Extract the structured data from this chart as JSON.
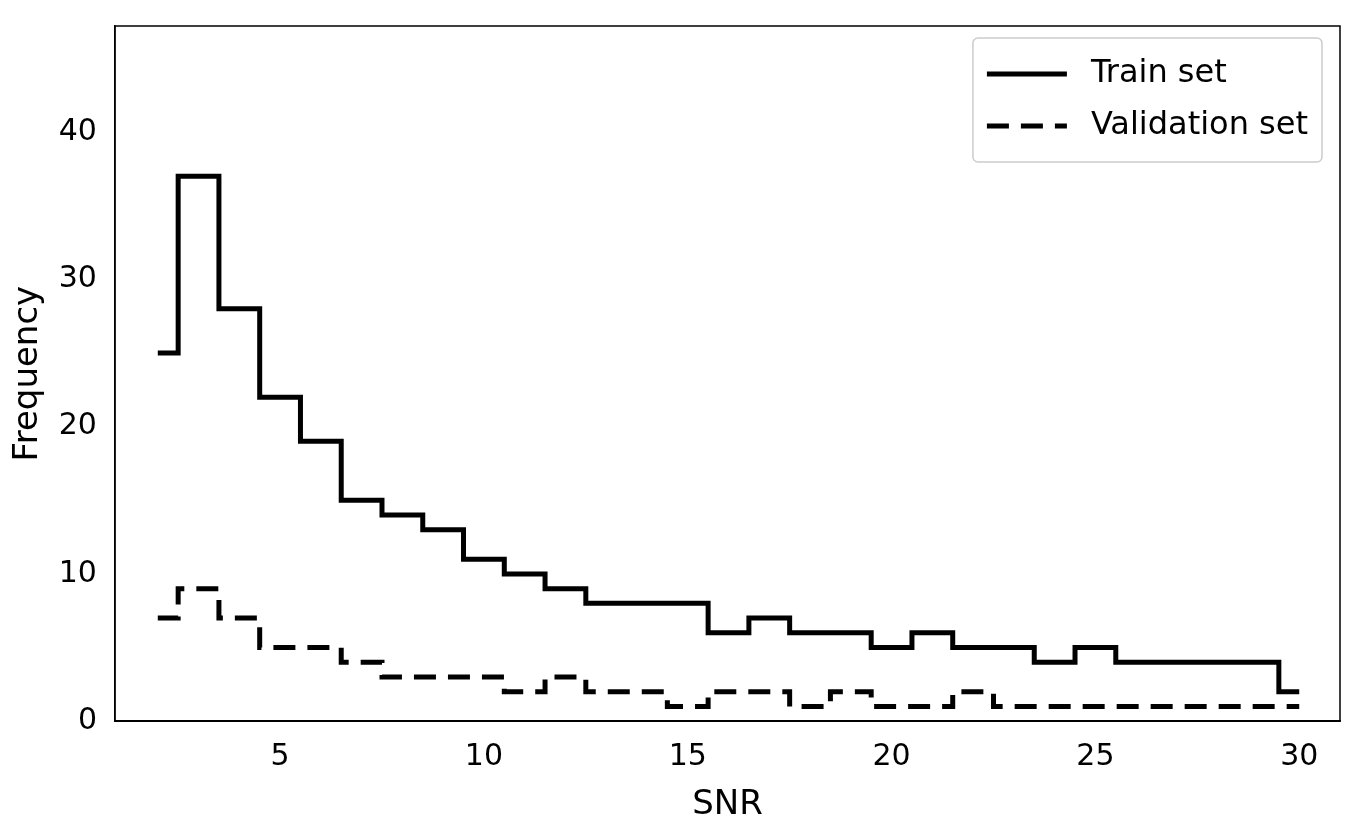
{
  "chart_data": {
    "type": "step",
    "xlabel": "SNR",
    "ylabel": "Frequency",
    "x": [
      2,
      3,
      4,
      5,
      6,
      7,
      8,
      9,
      10,
      11,
      12,
      13,
      14,
      15,
      16,
      17,
      18,
      19,
      20,
      21,
      22,
      23,
      24,
      25,
      26,
      27,
      28,
      29,
      30
    ],
    "series": [
      {
        "name": "Train set",
        "color": "#000000",
        "line_style": "solid",
        "values": [
          25,
          37,
          28,
          22,
          19,
          15,
          14,
          13,
          11,
          10,
          9,
          8,
          8,
          8,
          6,
          7,
          6,
          6,
          5,
          6,
          5,
          5,
          4,
          5,
          4,
          4,
          4,
          4,
          2
        ]
      },
      {
        "name": "Validation set",
        "color": "#000000",
        "line_style": "dashed",
        "values": [
          7,
          9,
          7,
          5,
          5,
          4,
          3,
          3,
          3,
          2,
          3,
          2,
          2,
          1,
          2,
          2,
          1,
          2,
          1,
          1,
          2,
          1,
          1,
          1,
          1,
          1,
          1,
          1,
          1
        ]
      }
    ],
    "xlim": [
      0.95,
      31.0
    ],
    "ylim": [
      0,
      47.2
    ],
    "xticks": [
      5,
      10,
      15,
      20,
      25,
      30
    ],
    "yticks": [
      0,
      10,
      20,
      30,
      40
    ],
    "grid": false,
    "legend": "top right",
    "marker": "none"
  }
}
